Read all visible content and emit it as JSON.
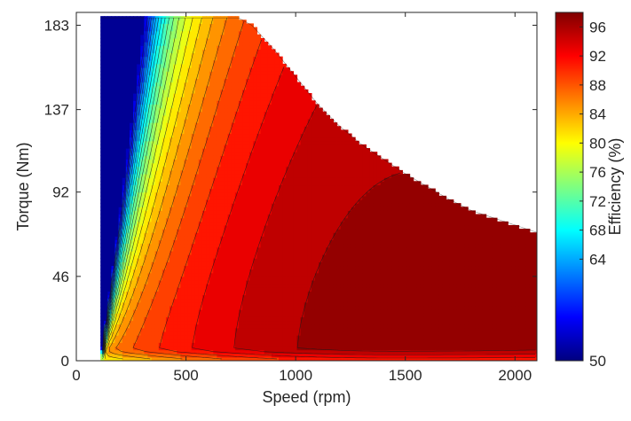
{
  "colors": {
    "colormap": [
      "#00007f",
      "#0000ff",
      "#007fff",
      "#00ffff",
      "#7fff7f",
      "#ffff00",
      "#ff7f00",
      "#ff0000",
      "#7f0000"
    ],
    "contour_line": "#1a1a1a",
    "axis": "#262626",
    "background": "#ffffff"
  },
  "chart_data": {
    "type": "heatmap",
    "subtype": "filled-contour efficiency map",
    "title": "",
    "xlabel": "Speed (rpm)",
    "ylabel": "Torque (Nm)",
    "colorbar_label": "Efficiency (%)",
    "xlim": [
      0,
      2100
    ],
    "ylim": [
      0,
      190
    ],
    "x_ticks": [
      0,
      500,
      1000,
      1500,
      2000
    ],
    "y_ticks": [
      0,
      46,
      92,
      137,
      183
    ],
    "colorbar_range": [
      50,
      98
    ],
    "colorbar_ticks": [
      50,
      64,
      68,
      72,
      76,
      80,
      84,
      88,
      92,
      96
    ],
    "speed_range": [
      110,
      2100
    ],
    "max_torque_envelope": {
      "speed": [
        110,
        740,
        800,
        900,
        1000,
        1100,
        1200,
        1300,
        1400,
        1500,
        1600,
        1700,
        1800,
        1900,
        2000,
        2100
      ],
      "torque": [
        187,
        187,
        183,
        170,
        155,
        140,
        128,
        118,
        110,
        102,
        95,
        88,
        82,
        78,
        74,
        70
      ]
    },
    "peak_efficiency_region": {
      "speed": [
        700,
        2000
      ],
      "torque": [
        5,
        35
      ],
      "center": [
        1450,
        18
      ],
      "efficiency": 96
    },
    "min_efficiency": 50,
    "max_efficiency": 97,
    "grid": false,
    "colorbar": "right"
  }
}
